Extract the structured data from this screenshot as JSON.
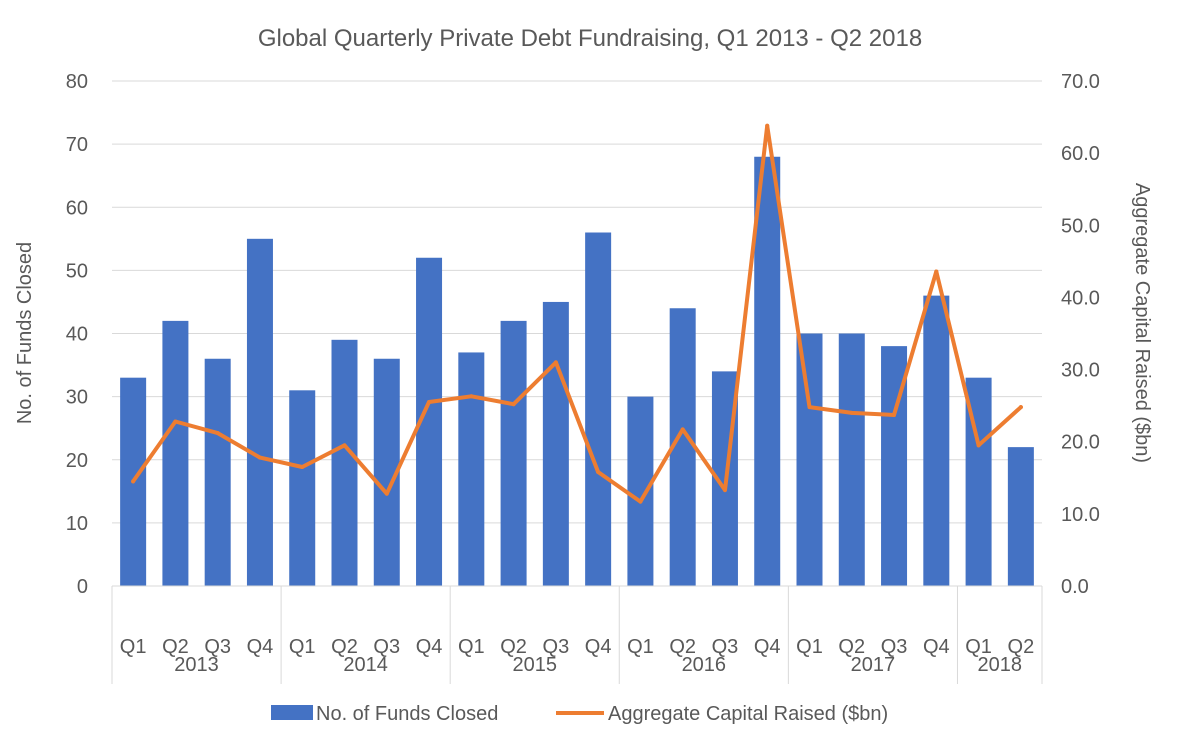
{
  "chart_data": {
    "type": "bar",
    "title": "Global Quarterly Private Debt Fundraising, Q1 2013 - Q2 2018",
    "ylabel": "No. of Funds Closed",
    "y2label": "Aggregate Capital Raised ($bn)",
    "ylim": [
      0,
      80
    ],
    "y2lim": [
      0,
      70
    ],
    "yticks": [
      "0",
      "10",
      "20",
      "30",
      "40",
      "50",
      "60",
      "70",
      "80"
    ],
    "y2ticks": [
      "0.0",
      "10.0",
      "20.0",
      "30.0",
      "40.0",
      "50.0",
      "60.0",
      "70.0"
    ],
    "categories": [
      "Q1",
      "Q2",
      "Q3",
      "Q4",
      "Q1",
      "Q2",
      "Q3",
      "Q4",
      "Q1",
      "Q2",
      "Q3",
      "Q4",
      "Q1",
      "Q2",
      "Q3",
      "Q4",
      "Q1",
      "Q2",
      "Q3",
      "Q4",
      "Q1",
      "Q2"
    ],
    "groups": [
      {
        "label": "2013",
        "count": 4
      },
      {
        "label": "2014",
        "count": 4
      },
      {
        "label": "2015",
        "count": 4
      },
      {
        "label": "2016",
        "count": 4
      },
      {
        "label": "2017",
        "count": 4
      },
      {
        "label": "2018",
        "count": 2
      }
    ],
    "series": [
      {
        "name": "No. of Funds Closed",
        "type": "bar",
        "axis": "left",
        "color": "#4472C4",
        "values": [
          33,
          42,
          36,
          55,
          31,
          39,
          36,
          52,
          37,
          42,
          45,
          56,
          30,
          44,
          34,
          68,
          40,
          40,
          38,
          46,
          33,
          22
        ]
      },
      {
        "name": "Aggregate Capital Raised ($bn)",
        "type": "line",
        "axis": "right",
        "color": "#ED7D31",
        "values": [
          14.5,
          22.8,
          21.2,
          17.8,
          16.5,
          19.5,
          12.8,
          25.5,
          26.3,
          25.2,
          31.0,
          15.8,
          11.7,
          21.7,
          13.3,
          63.8,
          24.8,
          24.0,
          23.7,
          43.6,
          19.5,
          24.8
        ]
      }
    ],
    "grid": true,
    "legend": "bottom"
  }
}
